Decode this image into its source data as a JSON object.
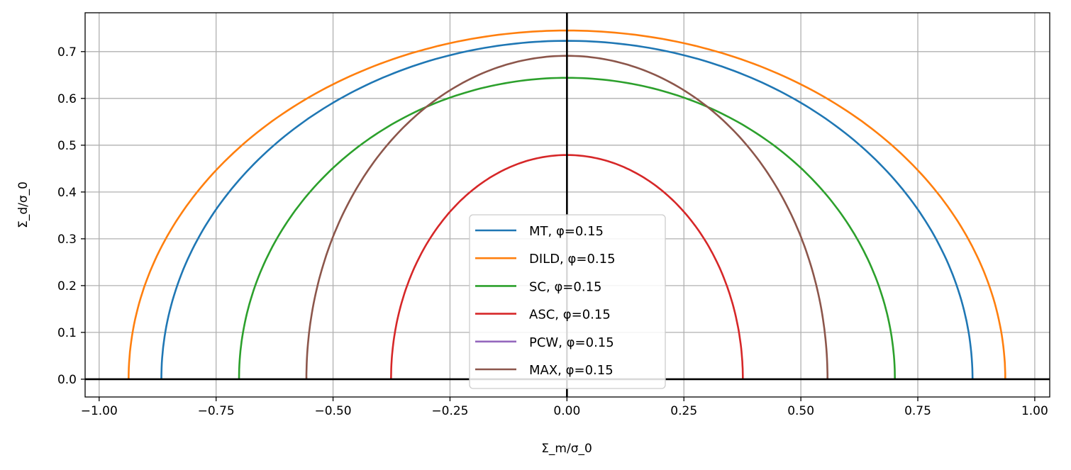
{
  "chart_data": {
    "type": "line",
    "title": "",
    "xlabel": "Σ_m/σ_0",
    "ylabel": "Σ_d/σ_0",
    "xlim": [
      -1.03,
      1.032
    ],
    "ylim": [
      -0.038,
      0.783
    ],
    "grid": true,
    "legend_position": "lower center",
    "xticks": [
      -1.0,
      -0.75,
      -0.5,
      -0.25,
      0.0,
      0.25,
      0.5,
      0.75,
      1.0
    ],
    "xtick_labels": [
      "−1.00",
      "−0.75",
      "−0.50",
      "−0.25",
      "0.00",
      "0.25",
      "0.50",
      "0.75",
      "1.00"
    ],
    "yticks": [
      0.0,
      0.1,
      0.2,
      0.3,
      0.4,
      0.5,
      0.6,
      0.7
    ],
    "ytick_labels": [
      "0.0",
      "0.1",
      "0.2",
      "0.3",
      "0.4",
      "0.5",
      "0.6",
      "0.7"
    ],
    "reference_lines": {
      "x": 0,
      "y": 0
    },
    "series": [
      {
        "name": "MT, φ=0.15",
        "color": "#1f77b4",
        "x_intercept": 0.867,
        "peak_y": 0.723,
        "visible": true
      },
      {
        "name": "DILD, φ=0.15",
        "color": "#ff7f0e",
        "x_intercept": 0.937,
        "peak_y": 0.745,
        "visible": true
      },
      {
        "name": "SC, φ=0.15",
        "color": "#2ca02c",
        "x_intercept": 0.701,
        "peak_y": 0.644,
        "visible": true
      },
      {
        "name": "ASC, φ=0.15",
        "color": "#d62728",
        "x_intercept": 0.376,
        "peak_y": 0.479,
        "visible": true
      },
      {
        "name": "PCW, φ=0.15",
        "color": "#9467bd",
        "x_intercept": null,
        "peak_y": null,
        "visible": false
      },
      {
        "name": "MAX, φ=0.15",
        "color": "#8c564b",
        "x_intercept": 0.557,
        "peak_y": 0.691,
        "visible": true
      }
    ]
  }
}
